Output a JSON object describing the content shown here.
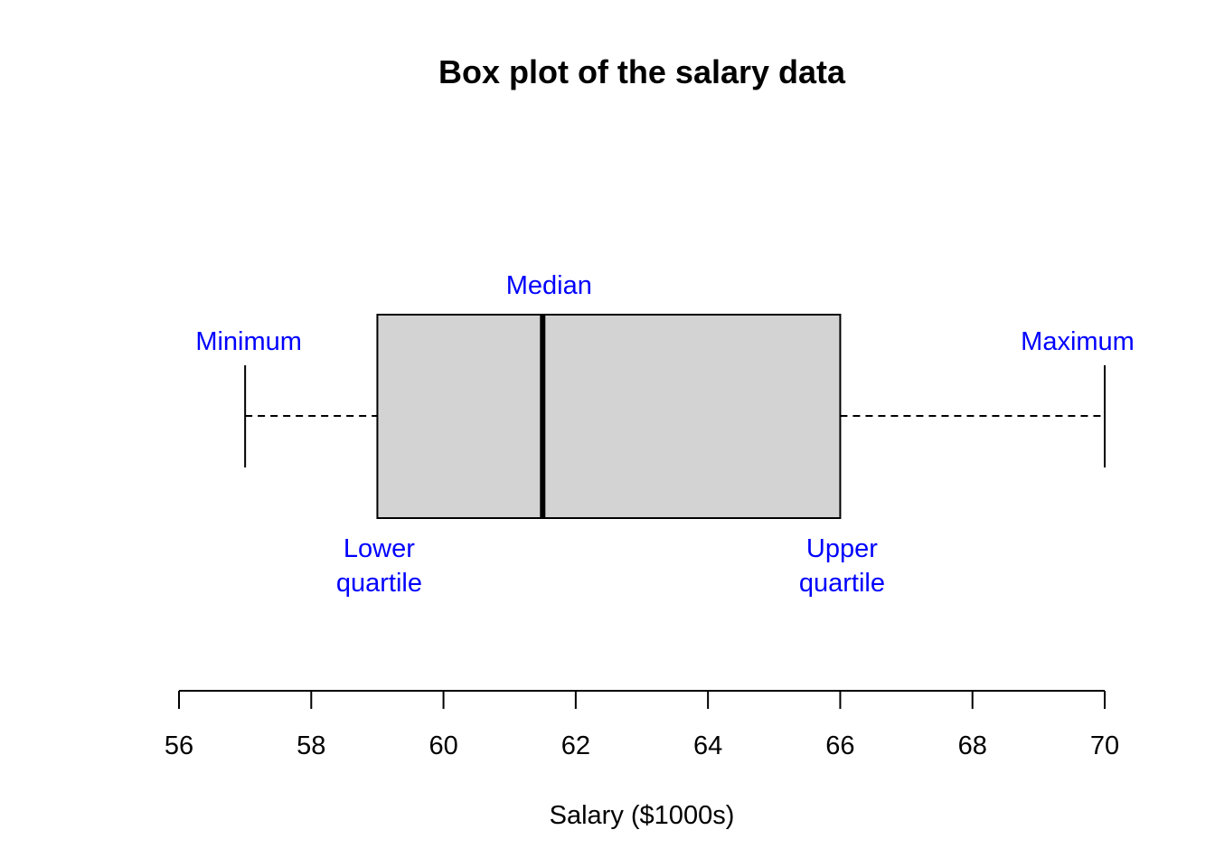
{
  "chart_data": {
    "type": "box",
    "title": "Box plot of the salary data",
    "xlabel": "Salary ($1000s)",
    "ylabel": "",
    "xlim": [
      56,
      70
    ],
    "ticks": [
      56,
      58,
      60,
      62,
      64,
      66,
      68,
      70
    ],
    "tick_labels": [
      "56",
      "58",
      "60",
      "62",
      "64",
      "66",
      "68",
      "70"
    ],
    "orientation": "horizontal",
    "grid": false,
    "box": {
      "minimum": 57,
      "lower_quartile": 59,
      "median": 61.5,
      "upper_quartile": 66,
      "maximum": 70
    },
    "box_fill_color": "#d3d3d3",
    "annotation_color": "#0000ff",
    "annotations": {
      "minimum": "Minimum",
      "median": "Median",
      "maximum": "Maximum",
      "lower_quartile": [
        "Lower",
        "quartile"
      ],
      "upper_quartile": [
        "Upper",
        "quartile"
      ]
    }
  }
}
